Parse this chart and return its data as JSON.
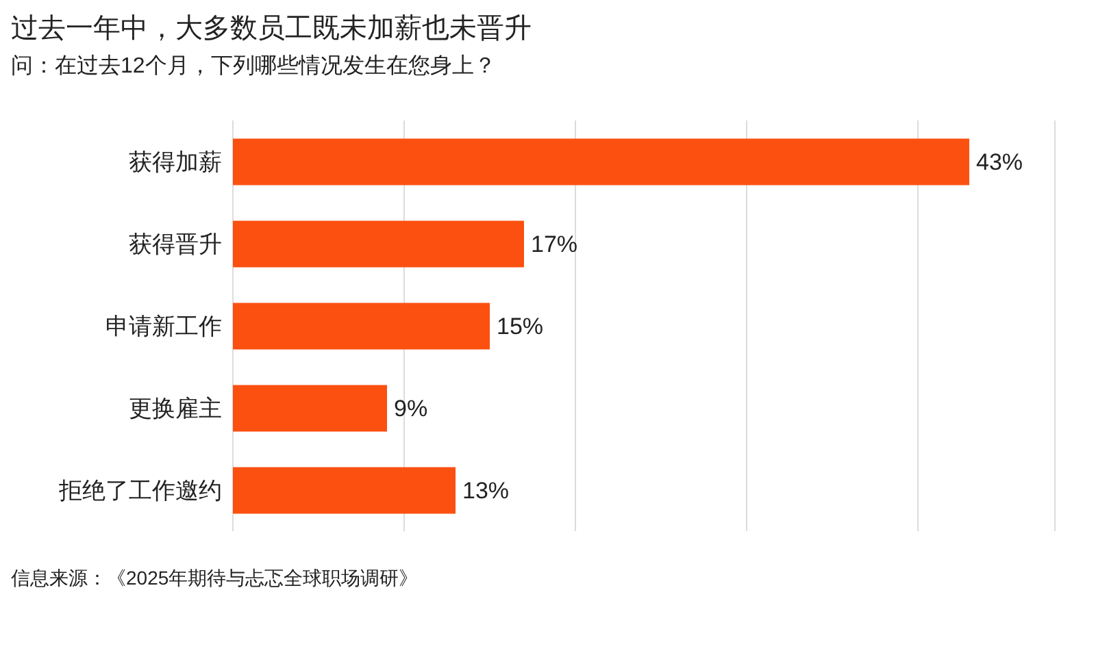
{
  "chart_data": {
    "type": "bar",
    "orientation": "horizontal",
    "title": "过去一年中，大多数员工既未加薪也未晋升",
    "subtitle": "问：在过去12个月，下列哪些情况发生在您身上？",
    "categories": [
      "获得加薪",
      "获得晋升",
      "申请新工作",
      "更换雇主",
      "拒绝了工作邀约"
    ],
    "values": [
      43,
      17,
      15,
      9,
      13
    ],
    "value_labels": [
      "43%",
      "17%",
      "15%",
      "9%",
      "13%"
    ],
    "color": "#fc5010",
    "xlim": [
      0,
      48
    ],
    "xticks": [
      {
        "value": 0,
        "label": null
      },
      {
        "value": 10,
        "label": null
      },
      {
        "value": 20,
        "label": null
      },
      {
        "value": 30,
        "label": null
      },
      {
        "value": 40,
        "label": null
      }
    ],
    "grid": "x",
    "tick_labels": "y",
    "annotations": [
      "信息来源：《2025年期待与忐忑全球职场调研》"
    ]
  }
}
